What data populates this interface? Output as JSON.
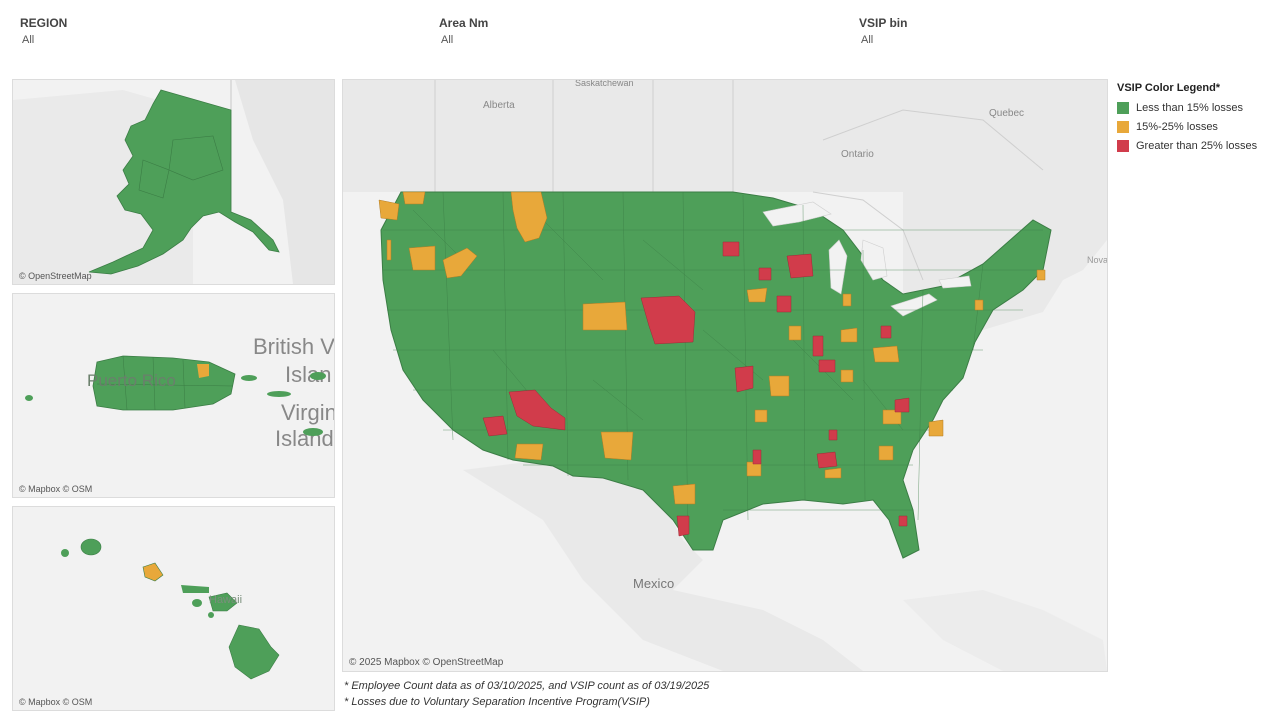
{
  "filters": [
    {
      "label": "REGION",
      "value": "All"
    },
    {
      "label": "Area Nm",
      "value": "All"
    },
    {
      "label": "VSIP bin",
      "value": "All"
    }
  ],
  "legend": {
    "title": "VSIP Color Legend*",
    "items": [
      {
        "label": "Less than 15% losses",
        "color": "#4e9f59"
      },
      {
        "label": "15%-25% losses",
        "color": "#e8a83a"
      },
      {
        "label": "Greater than 25% losses",
        "color": "#d13c4b"
      }
    ]
  },
  "map": {
    "credit": "© 2025 Mapbox © OpenStreetMap",
    "place_labels": [
      "Alberta",
      "Saskatchewan",
      "Ontario",
      "Quebec",
      "Mexico",
      "Nova"
    ]
  },
  "inset_alaska": {
    "credit": "© OpenStreetMap"
  },
  "inset_puerto_rico": {
    "credit": "© Mapbox © OSM",
    "place_labels": [
      "Puerto Rico",
      "British V",
      "Islan",
      "Virgin",
      "Island"
    ]
  },
  "inset_hawaii": {
    "credit": "© Mapbox © OSM",
    "place_labels": [
      "Hawaii"
    ]
  },
  "footnotes": [
    "* Employee Count data as of 03/10/2025, and VSIP count as of 03/19/2025",
    "* Losses due to Voluntary Separation Incentive Program(VSIP)"
  ]
}
